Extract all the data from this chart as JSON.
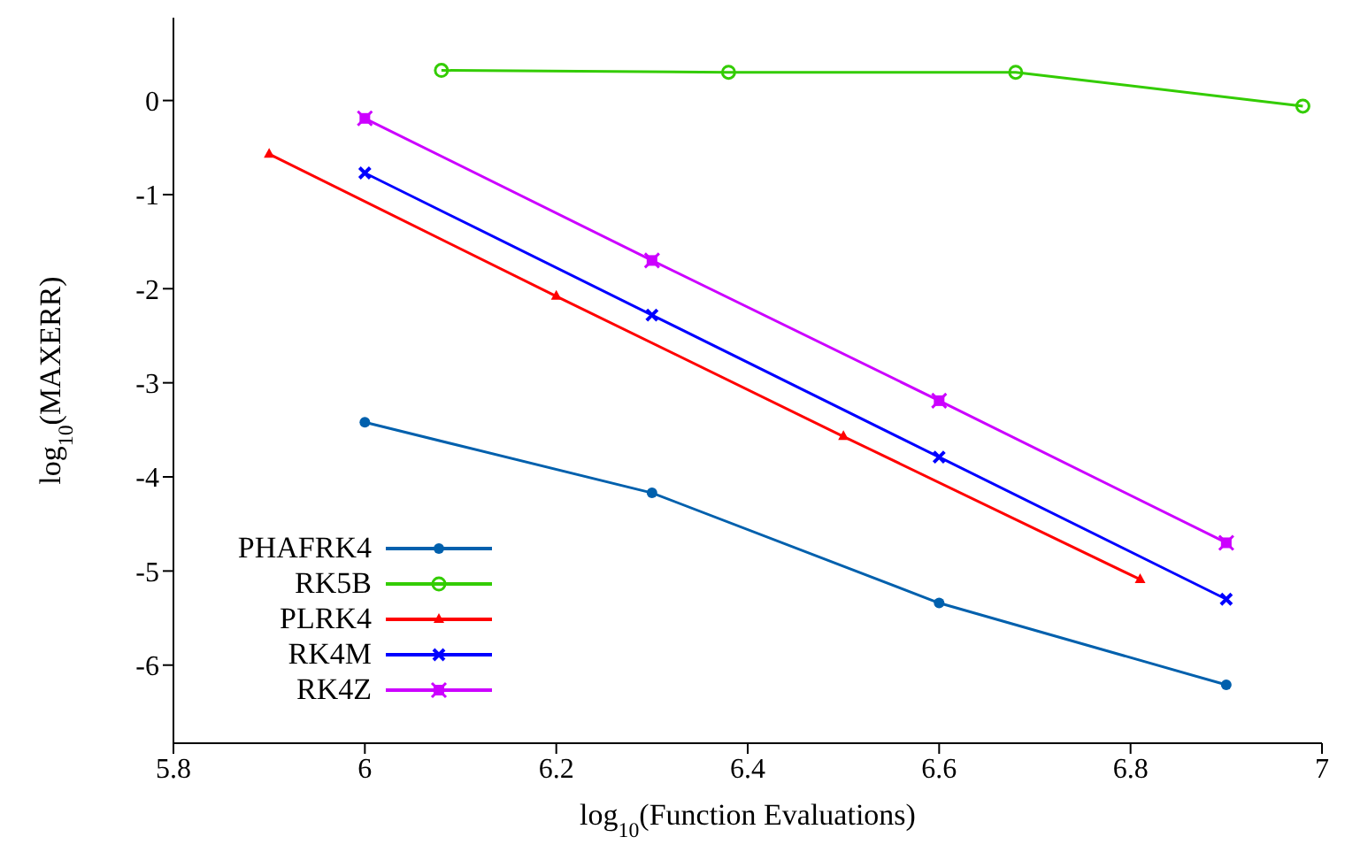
{
  "chart_data": {
    "type": "line",
    "xlabel": "log$_{10}$(Function Evaluations)",
    "ylabel": "log$_{10}$(MAXERR)",
    "xlim": [
      5.8,
      7.0
    ],
    "xticks": [
      5.8,
      6,
      6.2,
      6.4,
      6.6,
      6.8,
      7
    ],
    "ylim": [
      -6.83,
      0.88
    ],
    "yticks": [
      -6,
      -5,
      -4,
      -3,
      -2,
      -1,
      0
    ],
    "legend": "bottom left",
    "line_style": "solid",
    "series": [
      {
        "name": "PHAFRK4",
        "color": "#0060ad",
        "marker": "circle",
        "x": [
          6,
          6.3,
          6.6,
          6.9
        ],
        "values": [
          -3.42,
          -4.17,
          -5.34,
          -6.21
        ]
      },
      {
        "name": "RK5B",
        "color": "#33cc00",
        "marker": "open-circle",
        "x": [
          6.08,
          6.38,
          6.68,
          6.98
        ],
        "values": [
          0.32,
          0.3,
          0.3,
          -0.06
        ]
      },
      {
        "name": "PLRK4",
        "color": "#ff0000",
        "marker": "triangle",
        "x": [
          5.9,
          6.2,
          6.5,
          6.81
        ],
        "values": [
          -0.57,
          -2.08,
          -3.57,
          -5.09
        ]
      },
      {
        "name": "RK4M",
        "color": "#0000ff",
        "marker": "cross",
        "x": [
          6,
          6.3,
          6.6,
          6.9
        ],
        "values": [
          -0.77,
          -2.28,
          -3.79,
          -5.3
        ]
      },
      {
        "name": "RK4Z",
        "color": "#cc00ff",
        "marker": "square",
        "x": [
          6,
          6.3,
          6.6,
          6.9
        ],
        "values": [
          -0.19,
          -1.7,
          -3.19,
          -4.7
        ]
      }
    ]
  }
}
